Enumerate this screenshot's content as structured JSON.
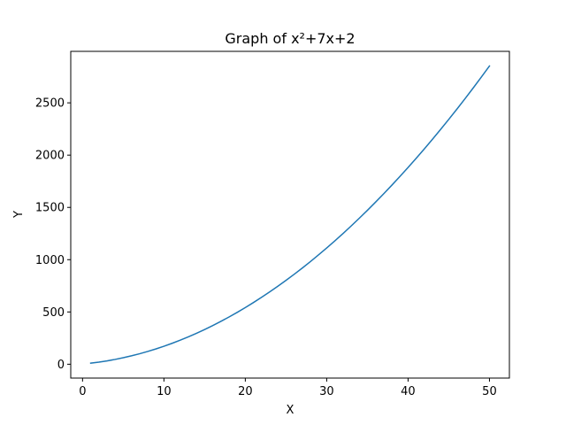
{
  "chart_data": {
    "type": "line",
    "title": "Graph of x²+7x+2",
    "xlabel": "X",
    "ylabel": "Y",
    "xlim": [
      -1.45,
      52.45
    ],
    "ylim": [
      -132.45,
      2992.45
    ],
    "xticks": [
      0,
      10,
      20,
      30,
      40,
      50
    ],
    "yticks": [
      0,
      500,
      1000,
      1500,
      2000,
      2500
    ],
    "grid": false,
    "series": [
      {
        "color": "#1f77b4",
        "x": [
          1,
          2,
          3,
          4,
          5,
          6,
          7,
          8,
          9,
          10,
          11,
          12,
          13,
          14,
          15,
          16,
          17,
          18,
          19,
          20,
          21,
          22,
          23,
          24,
          25,
          26,
          27,
          28,
          29,
          30,
          31,
          32,
          33,
          34,
          35,
          36,
          37,
          38,
          39,
          40,
          41,
          42,
          43,
          44,
          45,
          46,
          47,
          48,
          49,
          50
        ],
        "y": [
          10,
          20,
          32,
          46,
          62,
          80,
          100,
          122,
          146,
          172,
          200,
          230,
          262,
          296,
          332,
          370,
          410,
          452,
          496,
          542,
          590,
          640,
          692,
          746,
          802,
          860,
          920,
          982,
          1046,
          1112,
          1180,
          1250,
          1322,
          1396,
          1472,
          1550,
          1630,
          1712,
          1796,
          1882,
          1970,
          2060,
          2152,
          2246,
          2342,
          2440,
          2540,
          2642,
          2746,
          2852
        ]
      }
    ]
  }
}
